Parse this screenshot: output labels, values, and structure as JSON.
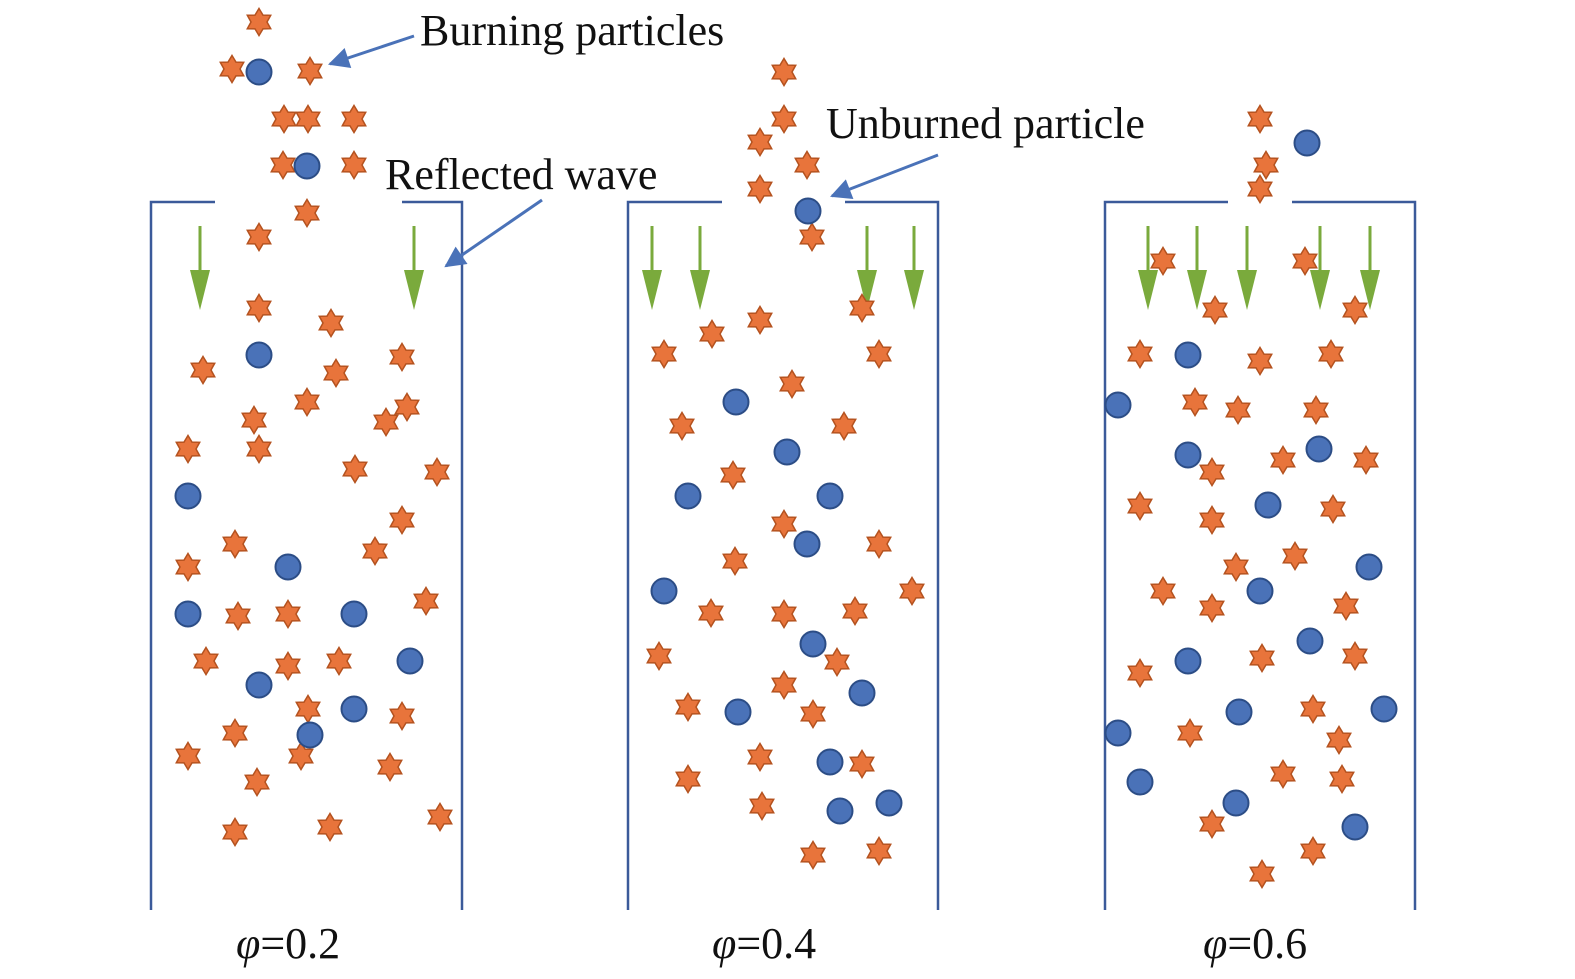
{
  "labels": {
    "burning": "Burning particles",
    "reflected": "Reflected wave",
    "unburned": "Unburned particle"
  },
  "panels": [
    {
      "caption_symbol": "φ",
      "caption_value": "=0.2"
    },
    {
      "caption_symbol": "φ",
      "caption_value": "=0.4"
    },
    {
      "caption_symbol": "φ",
      "caption_value": "=0.6"
    }
  ],
  "colors": {
    "tube": "#3b5a9a",
    "arrow": "#7aaa3c",
    "burning_fill": "#e8743b",
    "burning_stroke": "#b4521f",
    "unburned_fill": "#4a72b8",
    "unburned_stroke": "#2c4d86",
    "pointer": "#4a72b8"
  },
  "icons": {
    "burning": "six-point-star",
    "unburned": "circle"
  }
}
